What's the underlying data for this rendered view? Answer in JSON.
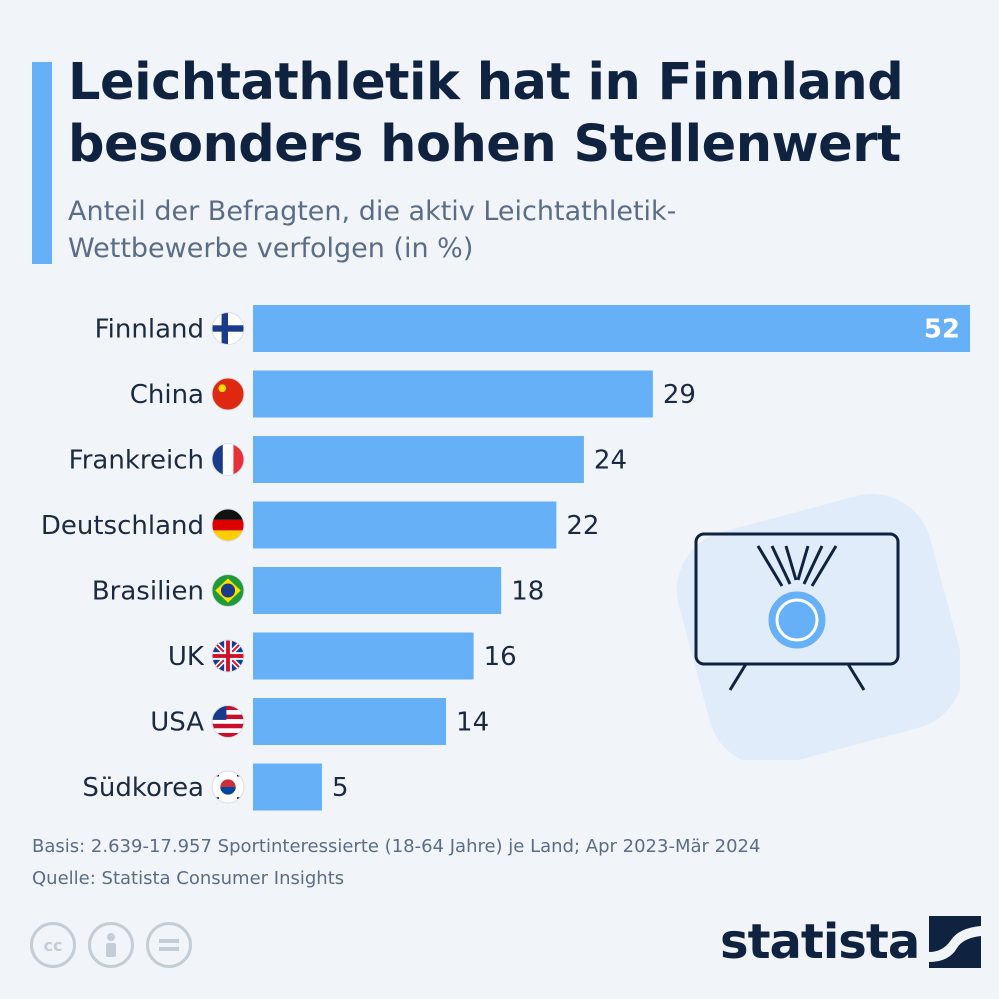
{
  "header": {
    "title": "Leichtathletik hat in Finnland besonders hohen Stellenwert",
    "subtitle": "Anteil der Befragten, die aktiv Leichtathletik-Wettbewerbe verfolgen (in %)"
  },
  "colors": {
    "bar": "#66b0f8",
    "accent": "#66b0f8",
    "title": "#0f2240"
  },
  "chart_data": {
    "type": "bar",
    "orientation": "horizontal",
    "categories": [
      "Finnland",
      "China",
      "Frankreich",
      "Deutschland",
      "Brasilien",
      "UK",
      "USA",
      "Südkorea"
    ],
    "values": [
      52,
      29,
      24,
      22,
      18,
      16,
      14,
      5
    ],
    "flags": [
      "fi",
      "cn",
      "fr",
      "de",
      "br",
      "uk",
      "us",
      "kr"
    ],
    "title": "Leichtathletik hat in Finnland besonders hohen Stellenwert",
    "xlabel": "",
    "ylabel": "",
    "xlim": [
      0,
      52
    ],
    "grid": false,
    "legend": "none",
    "data_labels": true
  },
  "footer": {
    "basis": "Basis: 2.639-17.957 Sportinteressierte (18-64 Jahre) je Land; Apr 2023-Mär 2024",
    "source": "Quelle: Statista Consumer Insights",
    "brand": "statista",
    "license_icons": [
      "cc-icon",
      "by-icon",
      "nd-icon"
    ]
  }
}
